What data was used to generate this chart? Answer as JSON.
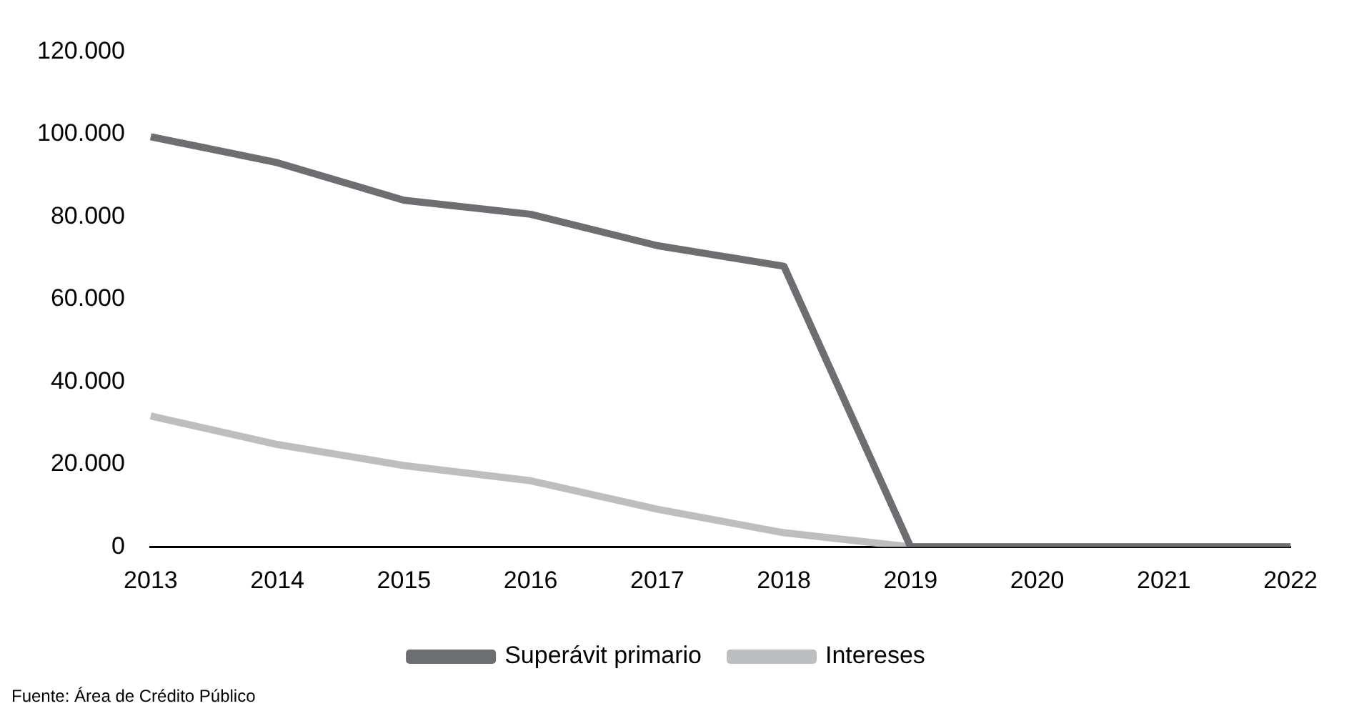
{
  "chart_data": {
    "type": "line",
    "categories": [
      "2013",
      "2014",
      "2015",
      "2016",
      "2017",
      "2018",
      "2019",
      "2020",
      "2021",
      "2022"
    ],
    "series": [
      {
        "name": "Superávit primario",
        "color": "#6d6e71",
        "values": [
          99400,
          93100,
          84000,
          80600,
          73000,
          68000,
          0,
          0,
          0,
          0
        ]
      },
      {
        "name": "Intereses",
        "color": "#bcbec0",
        "values": [
          31700,
          24800,
          19700,
          16000,
          9100,
          3400,
          0,
          0,
          0,
          0
        ]
      }
    ],
    "ylim": [
      0,
      120000
    ],
    "yticks": [
      {
        "value": 0,
        "label": "0"
      },
      {
        "value": 20000,
        "label": "20.000"
      },
      {
        "value": 40000,
        "label": "40.000"
      },
      {
        "value": 60000,
        "label": "60.000"
      },
      {
        "value": 80000,
        "label": "80.000"
      },
      {
        "value": 100000,
        "label": "100.000"
      },
      {
        "value": 120000,
        "label": "120.000"
      }
    ],
    "grid": false,
    "legend": "bottom",
    "marker": "none",
    "line_style": "solid",
    "annotations": [
      "Fuente: Área de Crédito Público"
    ]
  }
}
